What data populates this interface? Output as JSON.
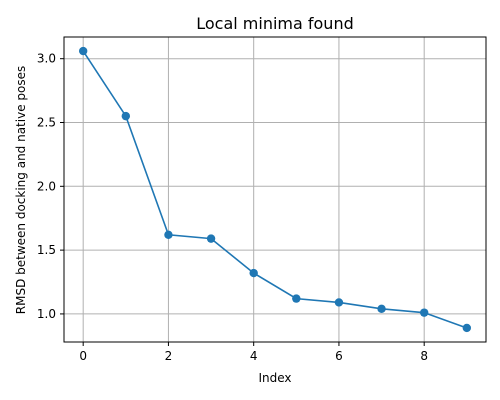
{
  "chart_data": {
    "type": "line",
    "title": "Local minima found",
    "xlabel": "Index",
    "ylabel": "RMSD between docking and native poses",
    "x": [
      0,
      1,
      2,
      3,
      4,
      5,
      6,
      7,
      8,
      9
    ],
    "series": [
      {
        "values": [
          3.06,
          2.55,
          1.62,
          1.59,
          1.32,
          1.12,
          1.09,
          1.04,
          1.01,
          0.89
        ],
        "color": "#1f77b4",
        "marker": "circle"
      }
    ],
    "xlim": [
      -0.45,
      9.45
    ],
    "ylim": [
      0.78,
      3.17
    ],
    "xticks": [
      0,
      2,
      4,
      6,
      8
    ],
    "xtick_labels": [
      "0",
      "2",
      "4",
      "6",
      "8"
    ],
    "yticks": [
      1.0,
      1.5,
      2.0,
      2.5,
      3.0
    ],
    "ytick_labels": [
      "1.0",
      "1.5",
      "2.0",
      "2.5",
      "3.0"
    ],
    "grid": true,
    "legend": false
  }
}
